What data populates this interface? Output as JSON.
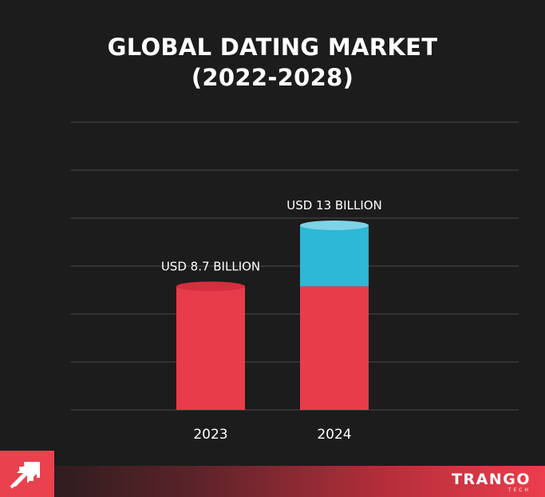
{
  "chart_data": {
    "type": "bar",
    "title_line1": "GLOBAL DATING MARKET",
    "title_line2": "(2022-2028)",
    "categories": [
      "2023",
      "2024"
    ],
    "values": [
      8.7,
      13
    ],
    "data_labels": [
      "USD 8.7 BILLION",
      "USD 13 BILLION"
    ],
    "ylim": [
      0,
      20
    ],
    "grid": true,
    "colors": {
      "bar": "#e83c4a",
      "bar_top": "#d42f3e",
      "increase": "#2cb8d6",
      "increase_top": "#7fd3e6",
      "grid": "#4a4a4a"
    }
  },
  "footer": {
    "brand_main": "TRANGO",
    "brand_sub": "TECH",
    "logo_icon": "trango-arrow-logo",
    "background": "#1c1c1c"
  }
}
